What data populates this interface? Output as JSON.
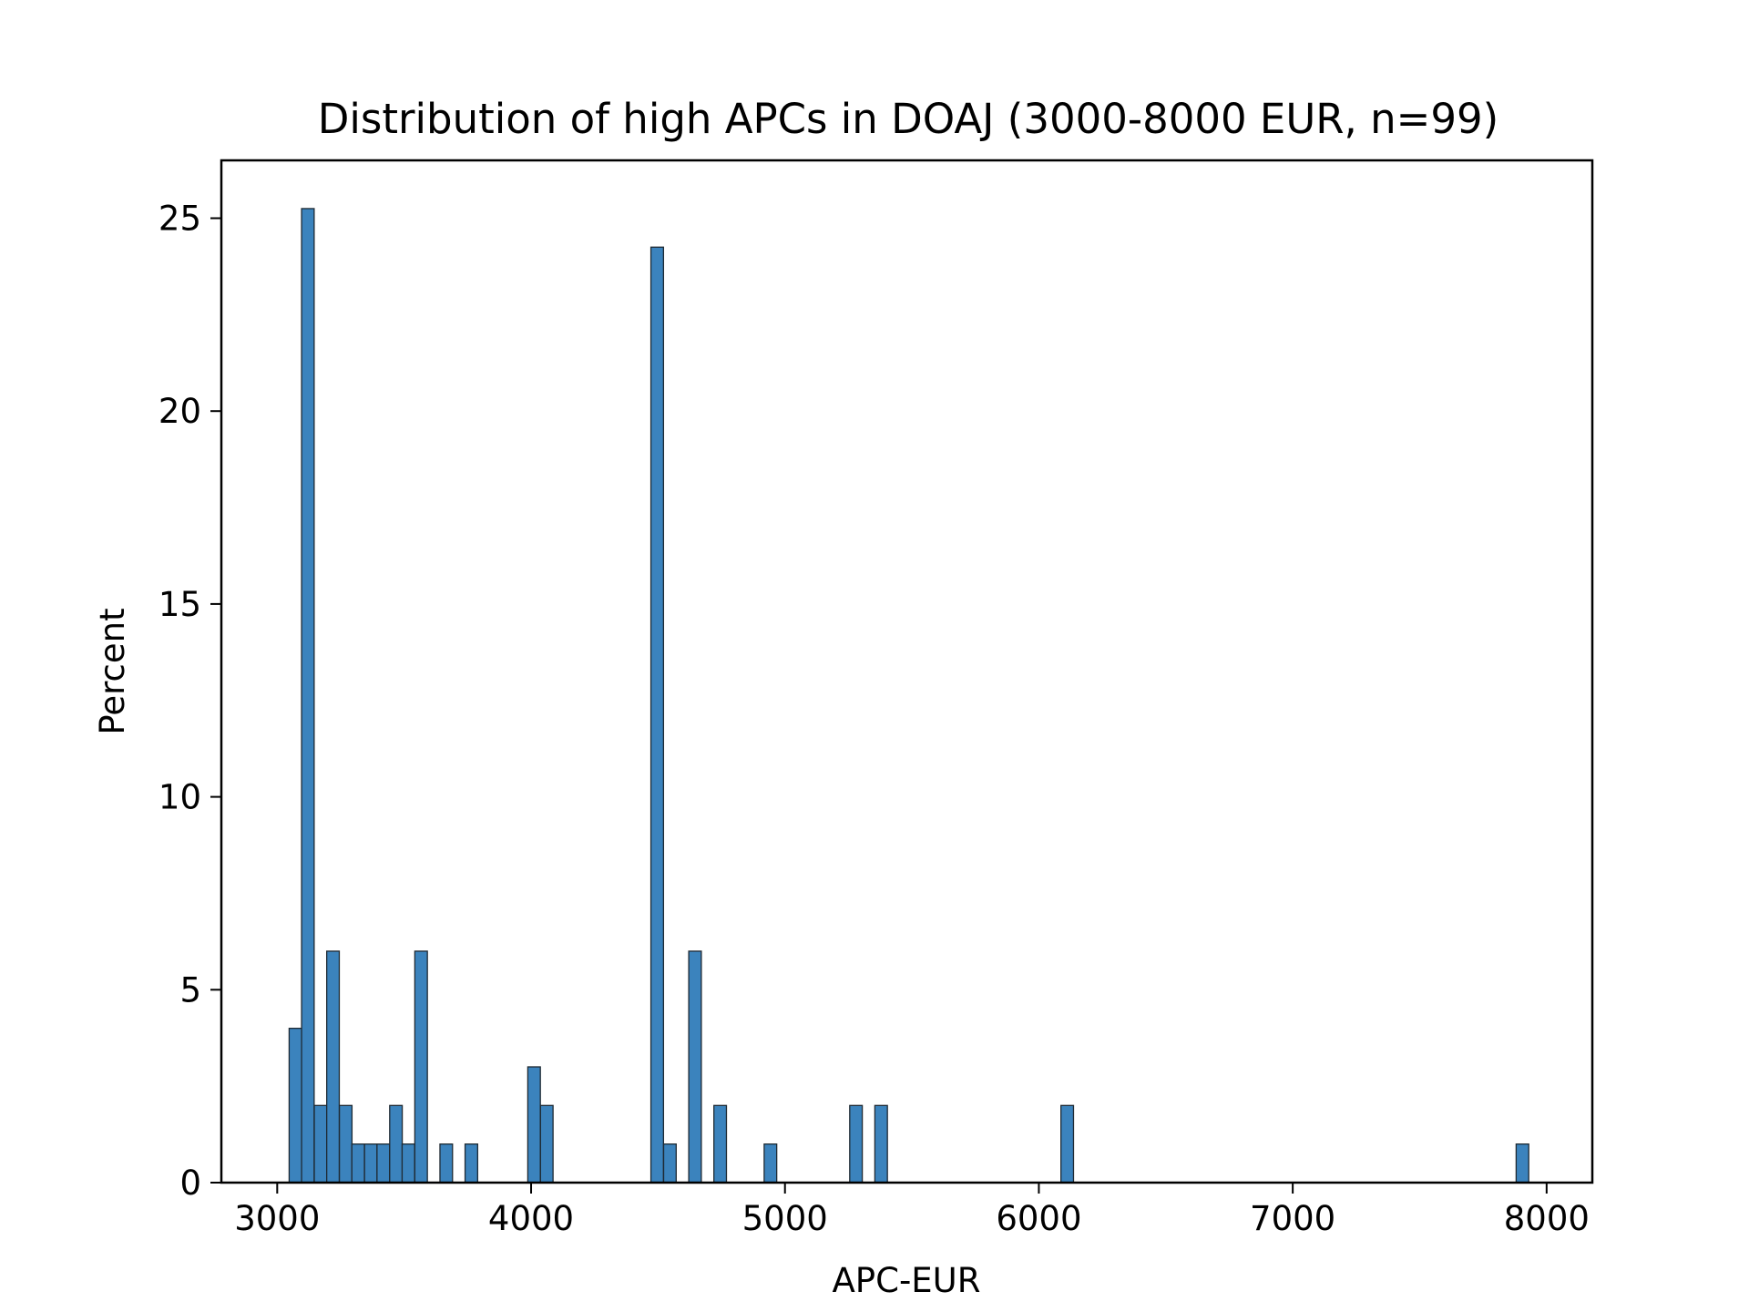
{
  "chart_data": {
    "type": "bar",
    "title": "Distribution of high APCs in DOAJ (3000-8000 EUR, n=99)",
    "xlabel": "APC-EUR",
    "ylabel": "Percent",
    "xlim": [
      2780,
      8180
    ],
    "ylim": [
      0,
      26.5
    ],
    "xticks": [
      3000,
      4000,
      5000,
      6000,
      7000,
      8000
    ],
    "yticks": [
      0,
      5,
      10,
      15,
      20,
      25
    ],
    "grid": false,
    "legend": "none",
    "bin_width": 49.5,
    "bar_color": "#3b83bd",
    "bar_edge_color": "#1f2a33",
    "bins": [
      {
        "x": 3047,
        "y": 4
      },
      {
        "x": 3096,
        "y": 25.25
      },
      {
        "x": 3146,
        "y": 2
      },
      {
        "x": 3195,
        "y": 6
      },
      {
        "x": 3245,
        "y": 2
      },
      {
        "x": 3294,
        "y": 1
      },
      {
        "x": 3344,
        "y": 1
      },
      {
        "x": 3393,
        "y": 1
      },
      {
        "x": 3443,
        "y": 2
      },
      {
        "x": 3492,
        "y": 1
      },
      {
        "x": 3542,
        "y": 6
      },
      {
        "x": 3641,
        "y": 1
      },
      {
        "x": 3740,
        "y": 1
      },
      {
        "x": 3987,
        "y": 3
      },
      {
        "x": 4037,
        "y": 2
      },
      {
        "x": 4472,
        "y": 24.25
      },
      {
        "x": 4522,
        "y": 1
      },
      {
        "x": 4621,
        "y": 6
      },
      {
        "x": 4720,
        "y": 2
      },
      {
        "x": 4918,
        "y": 1
      },
      {
        "x": 5255,
        "y": 2
      },
      {
        "x": 5354,
        "y": 2
      },
      {
        "x": 6087,
        "y": 2
      },
      {
        "x": 7880,
        "y": 1
      }
    ]
  }
}
